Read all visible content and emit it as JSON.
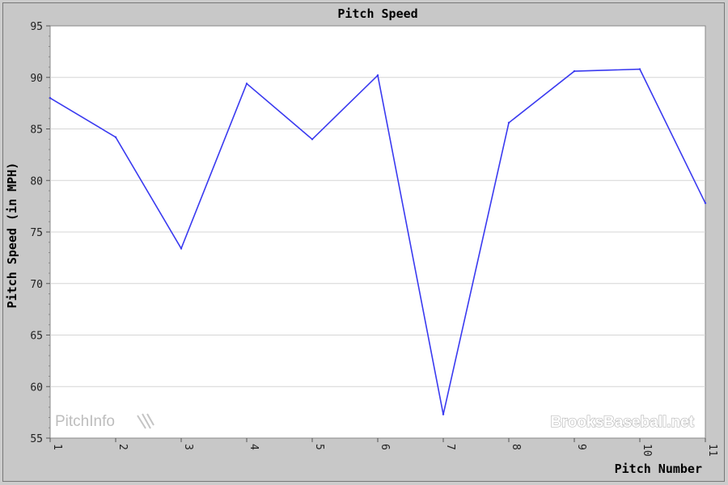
{
  "chart_data": {
    "type": "line",
    "title": "Pitch Speed",
    "xlabel": "Pitch Number",
    "ylabel": "Pitch Speed (in MPH)",
    "x": [
      1,
      2,
      3,
      4,
      5,
      6,
      7,
      8,
      9,
      10,
      11
    ],
    "xticks": [
      "1",
      "2",
      "3",
      "4",
      "5",
      "6",
      "7",
      "8",
      "9",
      "10",
      "11"
    ],
    "yticks": [
      "55",
      "60",
      "65",
      "70",
      "75",
      "80",
      "85",
      "90",
      "95"
    ],
    "ylim": [
      55,
      95
    ],
    "xlim": [
      1,
      11
    ],
    "series": [
      {
        "values": [
          88.0,
          84.2,
          73.4,
          89.4,
          84.0,
          90.2,
          57.3,
          85.6,
          90.6,
          90.8,
          77.8
        ]
      }
    ],
    "grid": "horizontal",
    "line_color": "#3a3af0"
  },
  "watermarks": {
    "left": "PitchInfo",
    "right": "BrooksBaseball.net"
  }
}
